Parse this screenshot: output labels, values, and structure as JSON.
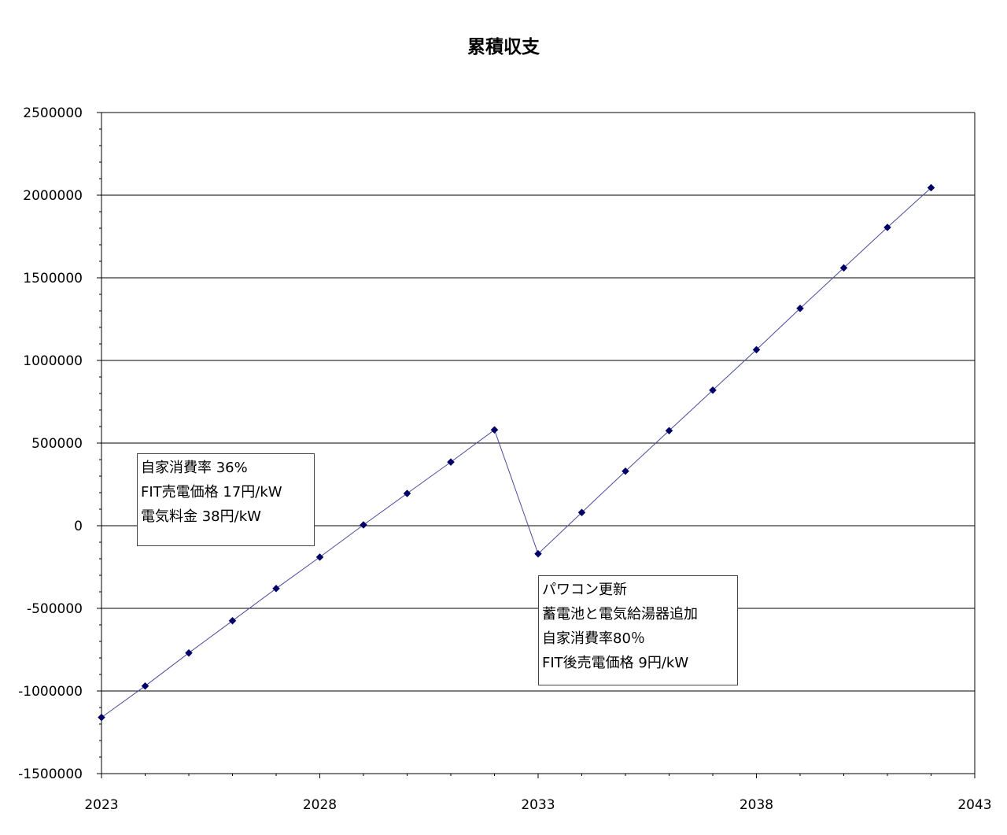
{
  "chart_data": {
    "type": "scatter",
    "title": "累積収支",
    "xlabel": "",
    "ylabel": "",
    "xlim": [
      2023,
      2043
    ],
    "ylim": [
      -1500000,
      2500000
    ],
    "x_ticks": [
      "2023",
      "2028",
      "2033",
      "2038",
      "2043"
    ],
    "y_ticks": [
      "2500000",
      "2000000",
      "1500000",
      "1000000",
      "500000",
      "0",
      "-500000",
      "-1000000",
      "-1500000"
    ],
    "grid": "horizontal major gridlines",
    "legend": "none",
    "marker": "diamond",
    "line": true,
    "series_color": "#000066",
    "line_color": "#4b4b9c",
    "points": [
      {
        "x": 2023,
        "y": -1160000
      },
      {
        "x": 2024,
        "y": -970000
      },
      {
        "x": 2025,
        "y": -770000
      },
      {
        "x": 2026,
        "y": -575000
      },
      {
        "x": 2027,
        "y": -380000
      },
      {
        "x": 2028,
        "y": -190000
      },
      {
        "x": 2029,
        "y": 5000
      },
      {
        "x": 2030,
        "y": 195000
      },
      {
        "x": 2031,
        "y": 385000
      },
      {
        "x": 2032,
        "y": 580000
      },
      {
        "x": 2033,
        "y": -170000
      },
      {
        "x": 2034,
        "y": 80000
      },
      {
        "x": 2035,
        "y": 330000
      },
      {
        "x": 2036,
        "y": 575000
      },
      {
        "x": 2037,
        "y": 820000
      },
      {
        "x": 2038,
        "y": 1065000
      },
      {
        "x": 2039,
        "y": 1315000
      },
      {
        "x": 2040,
        "y": 1560000
      },
      {
        "x": 2041,
        "y": 1805000
      },
      {
        "x": 2042,
        "y": 2045000
      }
    ],
    "annotations": [
      {
        "lines": [
          "自家消費率 36%",
          "FIT売電価格 17円/kW",
          "電気料金 38円/kW"
        ]
      },
      {
        "lines": [
          "パワコン更新",
          "蓄電池と電気給湯器追加",
          "自家消費率80％",
          "FIT後売電価格 9円/kW"
        ]
      }
    ]
  }
}
